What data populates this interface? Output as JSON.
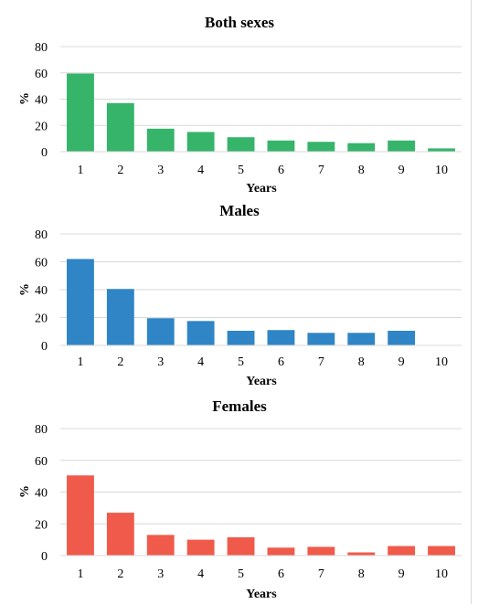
{
  "chart_data": [
    {
      "type": "bar",
      "title": "Both sexes",
      "xlabel": "Years",
      "ylabel": "%",
      "ylim": [
        0,
        80
      ],
      "yticks": [
        0,
        20,
        40,
        60,
        80
      ],
      "categories": [
        "1",
        "2",
        "3",
        "4",
        "5",
        "6",
        "7",
        "8",
        "9",
        "10"
      ],
      "values": [
        59.5,
        37,
        17.5,
        15,
        11,
        8.5,
        7.5,
        6.5,
        8.5,
        2.5
      ],
      "color": "#35b46a",
      "grid": true
    },
    {
      "type": "bar",
      "title": "Males",
      "xlabel": "Years",
      "ylabel": "%",
      "ylim": [
        0,
        80
      ],
      "yticks": [
        0,
        20,
        40,
        60,
        80
      ],
      "categories": [
        "1",
        "2",
        "3",
        "4",
        "5",
        "6",
        "7",
        "8",
        "9",
        "10"
      ],
      "values": [
        62,
        40.5,
        19.5,
        17.5,
        10.5,
        11,
        9,
        9,
        10.5,
        0
      ],
      "color": "#2f85c5",
      "grid": true
    },
    {
      "type": "bar",
      "title": "Females",
      "xlabel": "Years",
      "ylabel": "%",
      "ylim": [
        0,
        80
      ],
      "yticks": [
        0,
        20,
        40,
        60,
        80
      ],
      "categories": [
        "1",
        "2",
        "3",
        "4",
        "5",
        "6",
        "7",
        "8",
        "9",
        "10"
      ],
      "values": [
        50.5,
        27,
        13,
        10,
        11.5,
        5,
        5.5,
        2,
        6,
        6
      ],
      "color": "#f05a4a",
      "grid": true
    }
  ]
}
